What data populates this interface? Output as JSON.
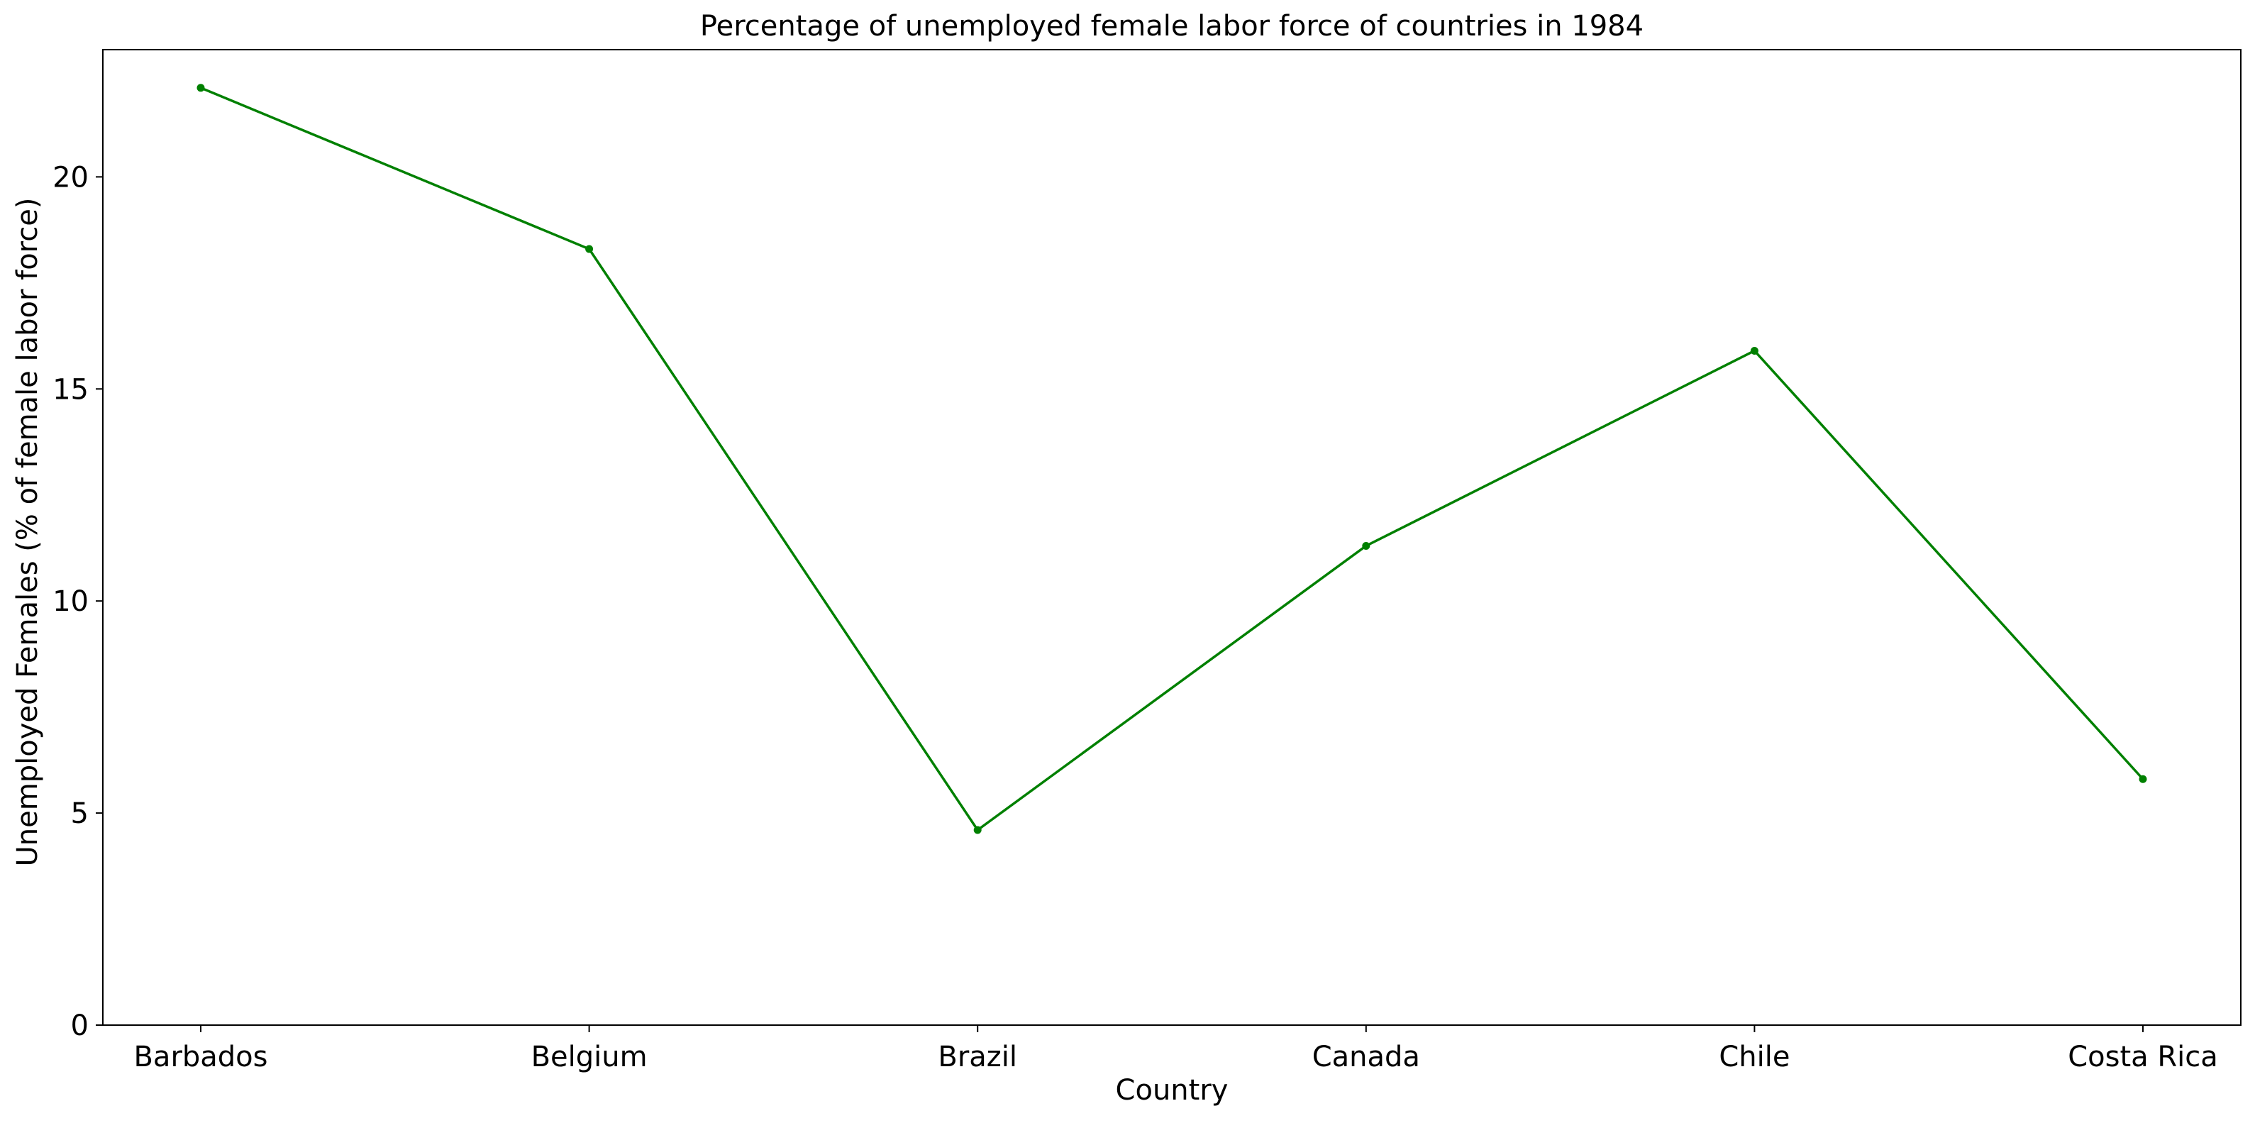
{
  "chart_data": {
    "type": "line",
    "title": "Percentage of unemployed female labor force of countries in 1984",
    "xlabel": "Country",
    "ylabel": "Unemployed Females (% of female labor force)",
    "categories": [
      "Barbados",
      "Belgium",
      "Brazil",
      "Canada",
      "Chile",
      "Costa Rica"
    ],
    "series": [
      {
        "values": [
          22.1,
          18.3,
          4.6,
          11.3,
          15.9,
          5.8
        ],
        "color": "#008000",
        "marker": "circle"
      }
    ],
    "ylim": [
      0,
      23
    ],
    "yticks": [
      0,
      5,
      10,
      15,
      20
    ],
    "grid": false,
    "legend": "none"
  }
}
